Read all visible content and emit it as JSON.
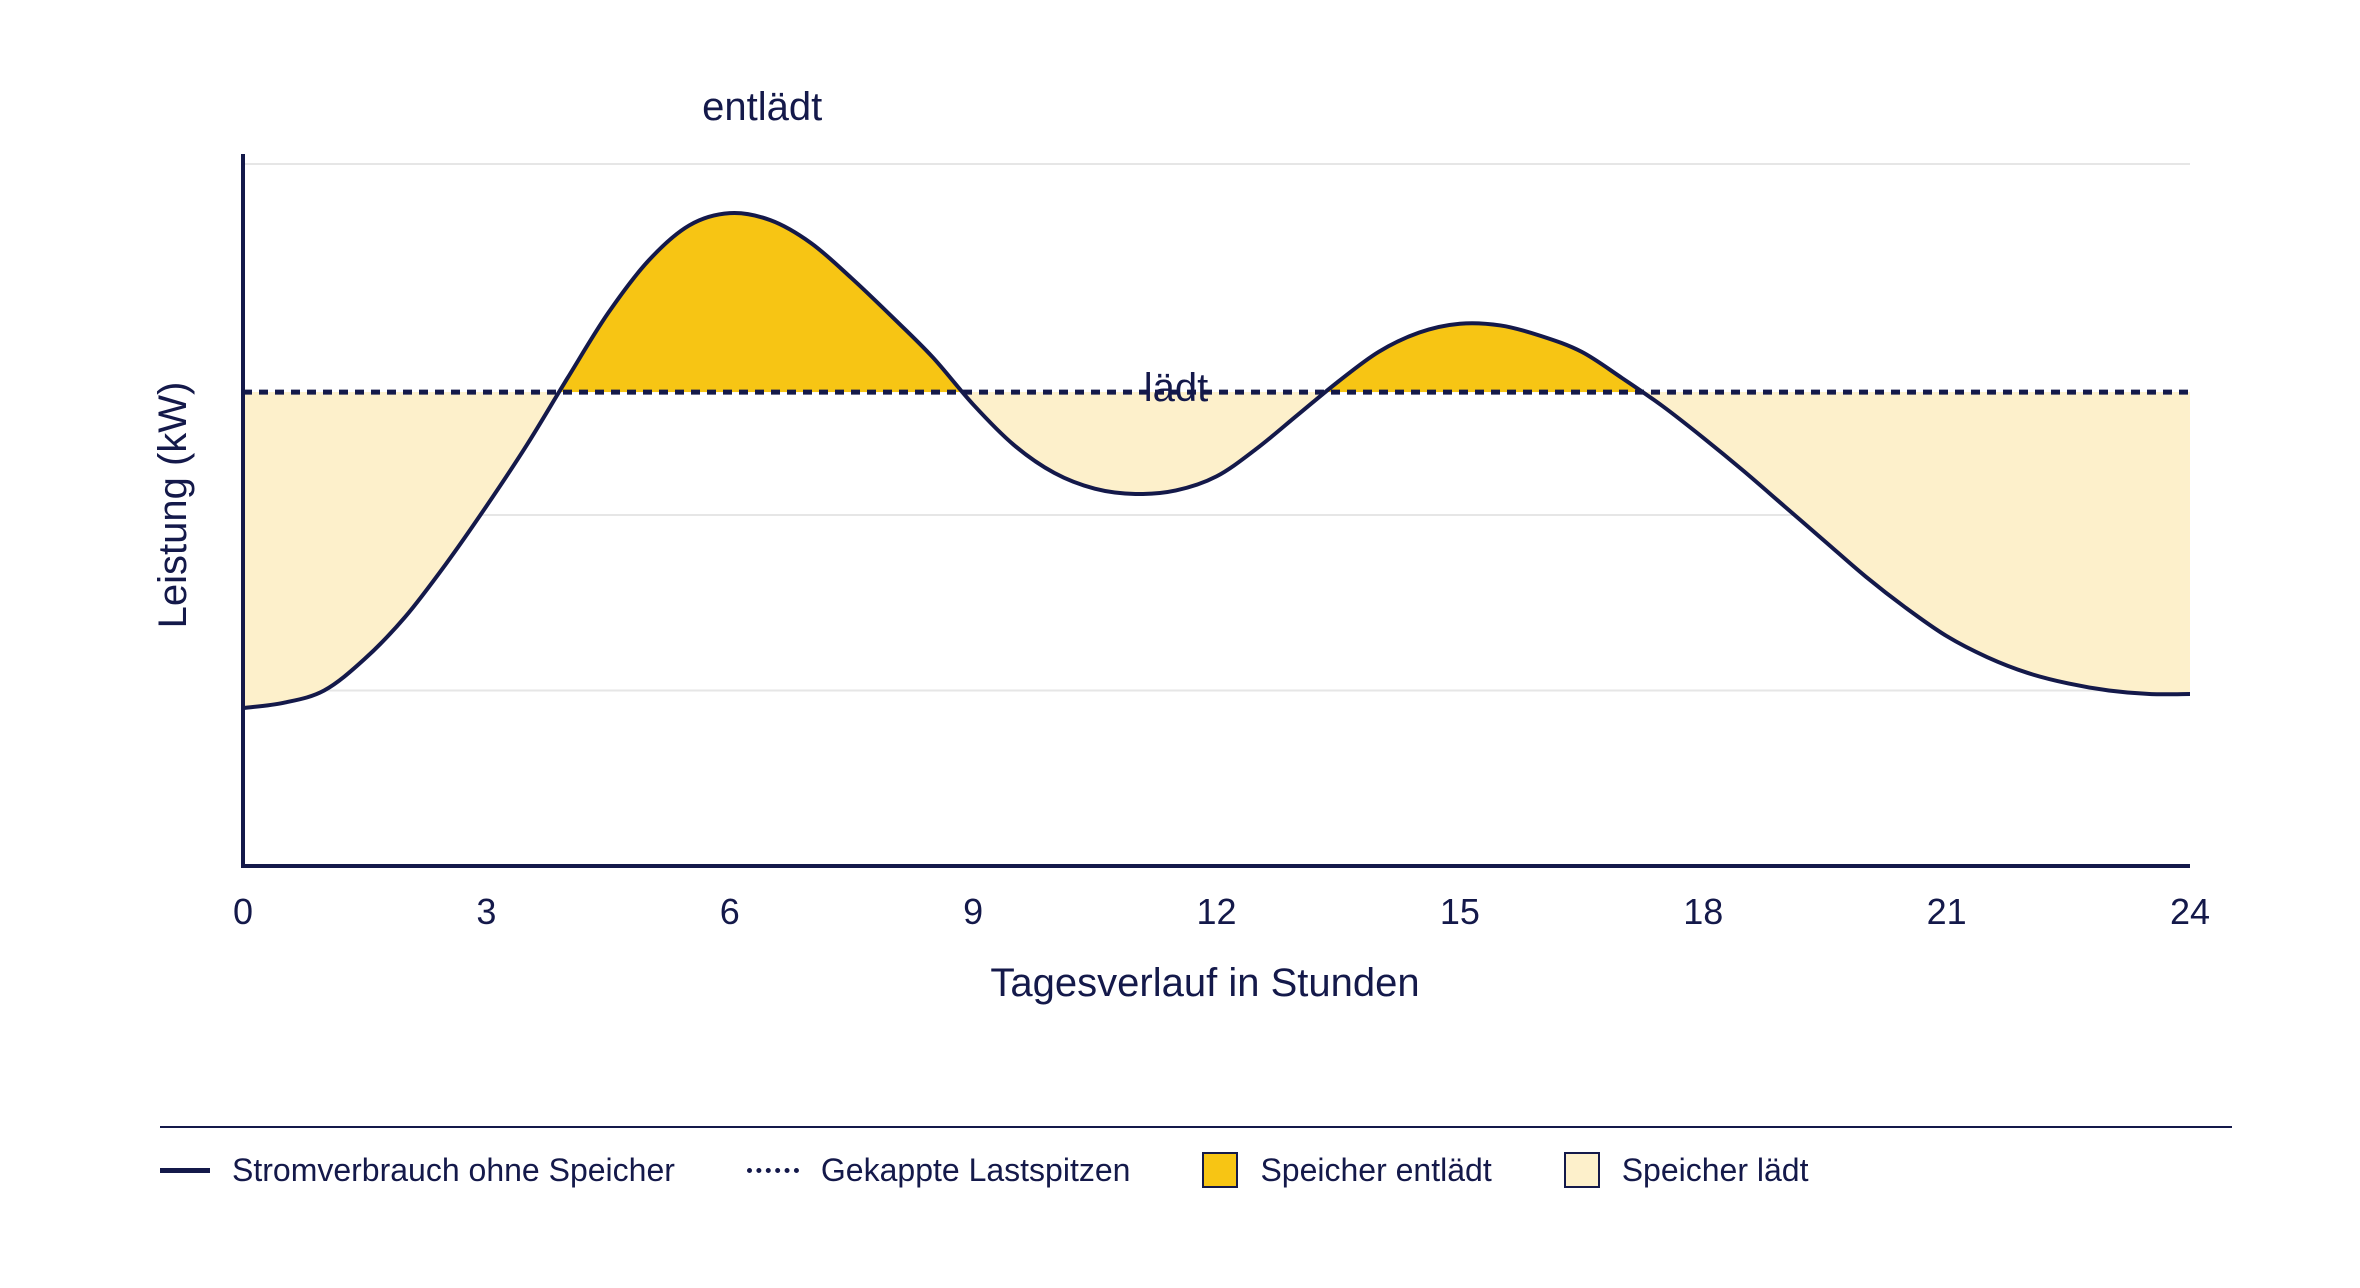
{
  "chart_data": {
    "type": "area",
    "x": [
      0,
      0.5,
      1,
      1.5,
      2,
      2.5,
      3,
      3.5,
      4,
      4.5,
      5,
      5.5,
      6,
      6.5,
      7,
      7.5,
      8,
      8.5,
      9,
      9.5,
      10,
      10.5,
      11,
      11.5,
      12,
      12.5,
      13,
      13.5,
      14,
      14.5,
      15,
      15.5,
      16,
      16.5,
      17,
      17.5,
      18,
      18.5,
      19,
      19.5,
      20,
      20.5,
      21,
      21.5,
      22,
      22.5,
      23,
      23.5,
      24
    ],
    "series": [
      {
        "name": "Stromverbrauch ohne Speicher",
        "values": [
          0.9,
          0.93,
          1.0,
          1.18,
          1.42,
          1.72,
          2.05,
          2.4,
          2.78,
          3.15,
          3.45,
          3.65,
          3.72,
          3.68,
          3.55,
          3.35,
          3.13,
          2.9,
          2.63,
          2.4,
          2.24,
          2.15,
          2.12,
          2.14,
          2.22,
          2.38,
          2.57,
          2.76,
          2.93,
          3.04,
          3.09,
          3.08,
          3.02,
          2.93,
          2.78,
          2.62,
          2.44,
          2.25,
          2.05,
          1.85,
          1.65,
          1.47,
          1.31,
          1.19,
          1.1,
          1.04,
          1.0,
          0.98,
          0.98
        ]
      },
      {
        "name": "Gekappte Lastspitzen",
        "values": [
          2.7,
          2.7,
          2.7,
          2.7,
          2.7,
          2.7,
          2.7,
          2.7,
          2.7,
          2.7,
          2.7,
          2.7,
          2.7,
          2.7,
          2.7,
          2.7,
          2.7,
          2.7,
          2.7,
          2.7,
          2.7,
          2.7,
          2.7,
          2.7,
          2.7,
          2.7,
          2.7,
          2.7,
          2.7,
          2.7,
          2.7,
          2.7,
          2.7,
          2.7,
          2.7,
          2.7,
          2.7,
          2.7,
          2.7,
          2.7,
          2.7,
          2.7,
          2.7,
          2.7,
          2.7,
          2.7,
          2.7,
          2.7,
          2.7
        ]
      }
    ],
    "xlabel": "Tagesverlauf in Stunden",
    "ylabel": "Leistung (kW)",
    "xlim": [
      0,
      24
    ],
    "ylim": [
      0,
      4
    ],
    "xticks": [
      "0",
      "3",
      "6",
      "9",
      "12",
      "15",
      "18",
      "21",
      "24"
    ],
    "ygrid": [
      1,
      2,
      4
    ],
    "annotations": [
      {
        "text": "entlädt",
        "x": 6.4,
        "y": 4.25
      },
      {
        "text": "lädt",
        "x": 11.5,
        "y": 2.65
      }
    ],
    "fill_discharge_label": "Speicher entlädt",
    "fill_charge_label": "Speicher lädt",
    "legend_position": "bottom",
    "grid": true
  },
  "legend": {
    "items": [
      {
        "label": "Stromverbrauch ohne Speicher",
        "kind": "line"
      },
      {
        "label": "Gekappte Lastspitzen",
        "kind": "dash"
      },
      {
        "label": "Speicher entlädt",
        "kind": "box-discharge"
      },
      {
        "label": "Speicher lädt",
        "kind": "box-charge"
      }
    ]
  },
  "colors": {
    "navy": "#14194a",
    "discharge": "#f7c514",
    "charge": "#fdf0cb",
    "grid": "#e6e6e6"
  }
}
